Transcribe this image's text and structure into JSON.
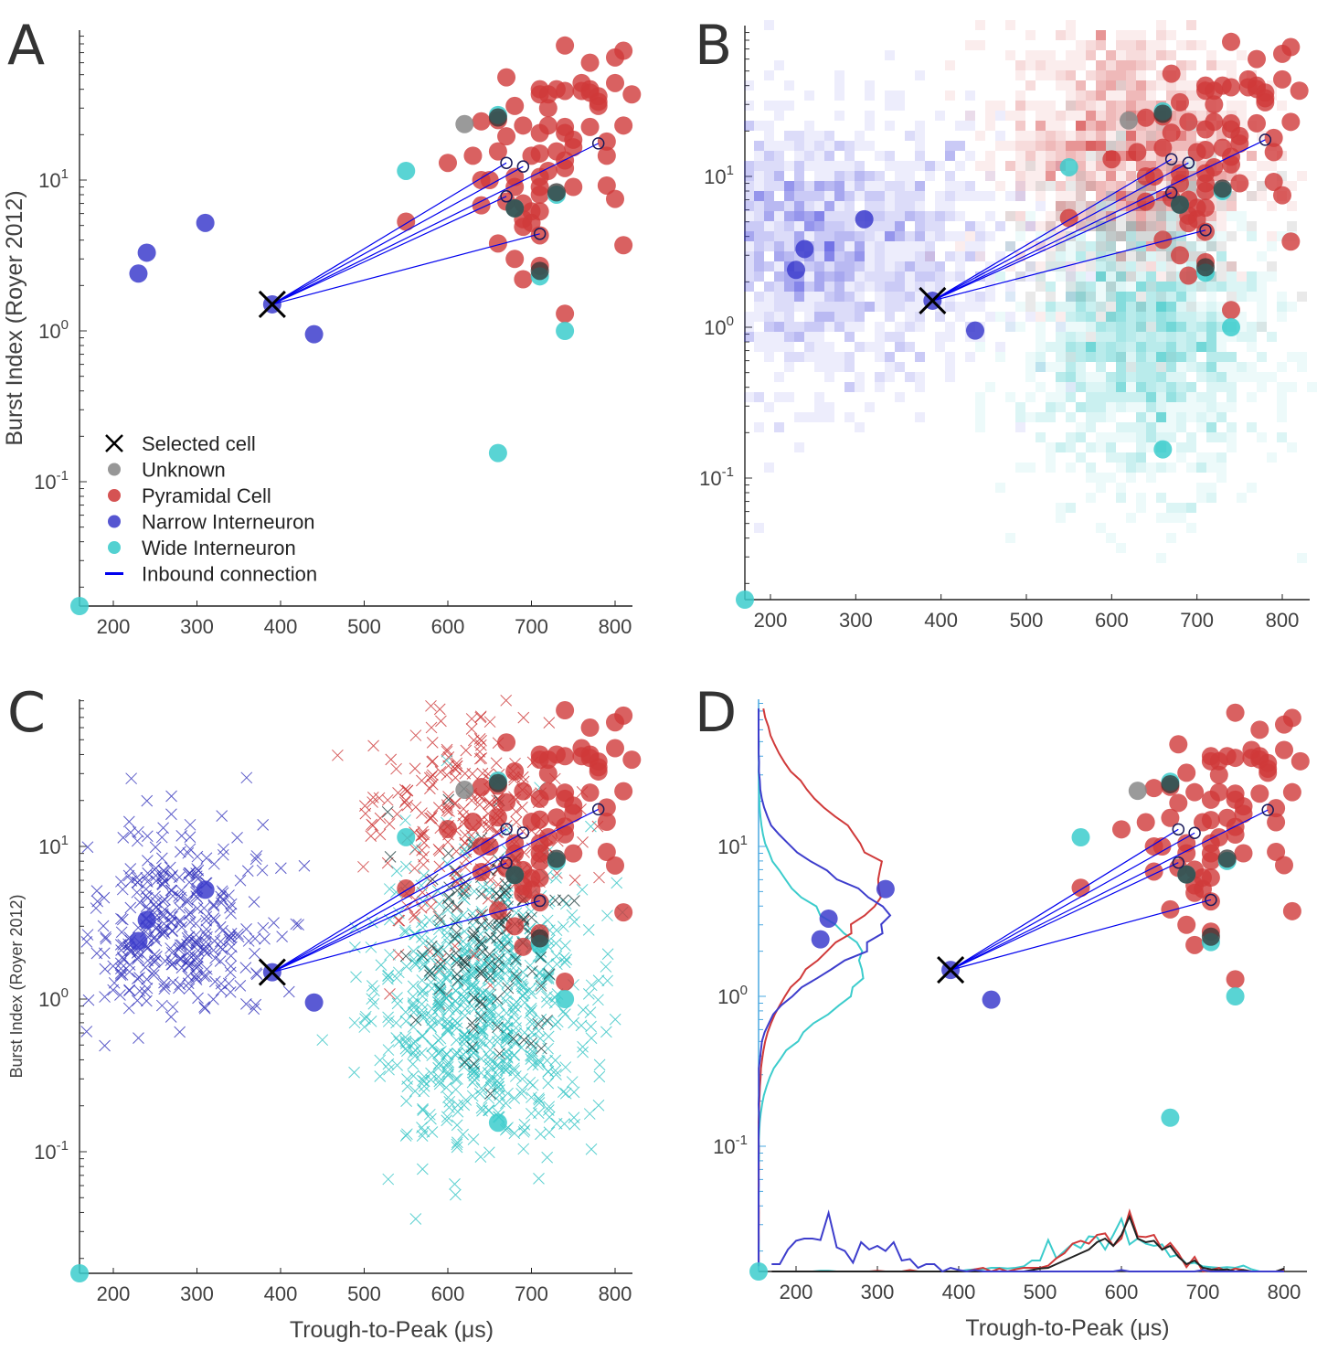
{
  "chart_data": {
    "type": "scatter",
    "figure_panels": [
      "A",
      "B",
      "C",
      "D"
    ],
    "xlabel": "Trough-to-Peak (μs)",
    "ylabel": "Burst Index (Royer 2012)",
    "xlim": [
      160,
      820
    ],
    "ylim_log10": [
      -1.84,
      2.0
    ],
    "yscale": "log",
    "x_ticks": [
      200,
      300,
      400,
      500,
      600,
      700,
      800
    ],
    "y_ticks": [
      {
        "base": "10",
        "exp": "1",
        "value": 10
      },
      {
        "base": "10",
        "exp": "0",
        "value": 1
      },
      {
        "base": "10",
        "exp": "-1",
        "value": 0.1
      }
    ],
    "legend": {
      "placement": "bottom-left (panel A)",
      "entries": [
        {
          "label": "Selected cell",
          "marker": "x",
          "color": "#000000"
        },
        {
          "label": "Unknown",
          "marker": "circle",
          "color": "#8c8c8c"
        },
        {
          "label": "Pyramidal Cell",
          "marker": "circle",
          "color": "#d04040"
        },
        {
          "label": "Narrow Interneuron",
          "marker": "circle",
          "color": "#4444cc"
        },
        {
          "label": "Wide Interneuron",
          "marker": "circle",
          "color": "#40cccc"
        },
        {
          "label": "Inbound connection",
          "marker": "line",
          "color": "#0000ee"
        }
      ]
    },
    "colors": {
      "pyramidal": "#d03a3a",
      "narrow": "#3d3dcc",
      "wide": "#3ccccc",
      "unknown": "#888888",
      "dark": "#333333",
      "connection": "#0000ee",
      "selected": "#000000",
      "d_yaxis": "#4aa8e0"
    },
    "selected_cell": {
      "x": 390,
      "y": 1.5
    },
    "connection_targets": [
      {
        "x": 670,
        "y": 13
      },
      {
        "x": 690,
        "y": 12.3
      },
      {
        "x": 670,
        "y": 7.8
      },
      {
        "x": 710,
        "y": 4.4
      },
      {
        "x": 780,
        "y": 17.5
      }
    ],
    "series": [
      {
        "name": "Unknown",
        "points": [
          [
            620,
            23.5
          ]
        ]
      },
      {
        "name": "Dark overlap",
        "points": [
          [
            660,
            26
          ],
          [
            680,
            6.5
          ],
          [
            730,
            8.3
          ],
          [
            710,
            2.5
          ]
        ]
      },
      {
        "name": "Narrow Interneuron",
        "points": [
          [
            230,
            2.4
          ],
          [
            240,
            3.3
          ],
          [
            310,
            5.2
          ],
          [
            440,
            0.95
          ],
          [
            390,
            1.5
          ]
        ]
      },
      {
        "name": "Wide Interneuron",
        "points": [
          [
            160,
            0.016
          ],
          [
            550,
            11.5
          ],
          [
            660,
            27
          ],
          [
            680,
            6.5
          ],
          [
            710,
            2.3
          ],
          [
            730,
            8.0
          ],
          [
            740,
            1.0
          ],
          [
            660,
            0.155
          ]
        ]
      },
      {
        "name": "Pyramidal Cell",
        "points": [
          [
            740,
            78
          ],
          [
            800,
            65
          ],
          [
            810,
            72
          ],
          [
            770,
            60
          ],
          [
            670,
            48
          ],
          [
            760,
            44
          ],
          [
            800,
            44
          ],
          [
            820,
            37
          ],
          [
            710,
            40
          ],
          [
            710,
            37
          ],
          [
            730,
            40
          ],
          [
            740,
            39
          ],
          [
            720,
            37
          ],
          [
            770,
            38
          ],
          [
            780,
            36
          ],
          [
            760,
            39
          ],
          [
            770,
            40
          ],
          [
            680,
            31
          ],
          [
            720,
            30
          ],
          [
            780,
            31
          ],
          [
            780,
            33
          ],
          [
            640,
            24.5
          ],
          [
            660,
            25
          ],
          [
            690,
            23
          ],
          [
            710,
            20.5
          ],
          [
            720,
            23
          ],
          [
            740,
            22.5
          ],
          [
            740,
            20.5
          ],
          [
            770,
            22.5
          ],
          [
            810,
            23
          ],
          [
            670,
            19.5
          ],
          [
            750,
            18.5
          ],
          [
            790,
            18
          ],
          [
            600,
            13
          ],
          [
            630,
            14.5
          ],
          [
            660,
            15.5
          ],
          [
            700,
            14.5
          ],
          [
            710,
            15
          ],
          [
            730,
            15.5
          ],
          [
            740,
            13.5
          ],
          [
            750,
            16.5
          ],
          [
            790,
            14.5
          ],
          [
            640,
            10
          ],
          [
            650,
            10
          ],
          [
            680,
            10.5
          ],
          [
            710,
            10.5
          ],
          [
            720,
            11.5
          ],
          [
            740,
            12
          ],
          [
            680,
            9
          ],
          [
            710,
            9
          ],
          [
            710,
            8
          ],
          [
            750,
            9
          ],
          [
            790,
            9.2
          ],
          [
            800,
            7.5
          ],
          [
            640,
            6.8
          ],
          [
            670,
            7.2
          ],
          [
            690,
            7.0
          ],
          [
            700,
            6.2
          ],
          [
            710,
            6.2
          ],
          [
            690,
            5.5
          ],
          [
            700,
            5.2
          ],
          [
            690,
            4.9
          ],
          [
            550,
            5.3
          ],
          [
            660,
            3.8
          ],
          [
            710,
            4.3
          ],
          [
            680,
            3.0
          ],
          [
            710,
            2.7
          ],
          [
            690,
            2.2
          ],
          [
            810,
            3.7
          ],
          [
            740,
            1.3
          ]
        ]
      }
    ],
    "panel_B": {
      "description": "scatter overlaid on 2D density heatmaps per cell type",
      "density_centers": [
        {
          "type": "narrow",
          "x": 250,
          "y": 3.5,
          "spread": "high"
        },
        {
          "type": "pyramidal",
          "x": 620,
          "y": 15,
          "spread": "high"
        },
        {
          "type": "wide",
          "x": 640,
          "y": 1.0,
          "spread": "high"
        }
      ]
    },
    "panel_C": {
      "description": "scatter overlaid on reference population shown as x markers colored by type",
      "reference_marker": "x"
    },
    "panel_D": {
      "description": "scatter with marginal histograms along y (left) and x (bottom) axes per type",
      "x_marginal": {
        "bins": [
          170,
          180,
          190,
          200,
          210,
          220,
          230,
          240,
          250,
          260,
          270,
          280,
          290,
          300,
          310,
          320,
          330,
          340,
          350,
          360,
          370,
          380,
          390,
          400,
          410,
          420,
          430,
          440,
          450,
          460,
          470,
          480,
          490,
          500,
          510,
          520,
          530,
          540,
          550,
          560,
          570,
          580,
          590,
          600,
          610,
          620,
          630,
          640,
          650,
          660,
          670,
          680,
          690,
          700,
          710,
          720,
          730,
          740,
          750,
          760,
          770,
          780,
          790,
          800
        ],
        "narrow": [
          0.1,
          0.1,
          0.3,
          0.42,
          0.45,
          0.45,
          0.43,
          0.8,
          0.33,
          0.28,
          0.12,
          0.4,
          0.3,
          0.35,
          0.28,
          0.4,
          0.15,
          0.17,
          0.05,
          0.1,
          0.1,
          0.0,
          0.05,
          0.02,
          0.0,
          0.02,
          0.0,
          0.0,
          0.0,
          0.0,
          0.0,
          0.0,
          0.0,
          0.0,
          0.0,
          0.0,
          0.0,
          0.0,
          0.0,
          0.0,
          0.0,
          0.0,
          0.0,
          0.02,
          0.0,
          0.0,
          0.0,
          0.0,
          0.0,
          0.0,
          0.0,
          0.0,
          0.0,
          0.02,
          0.0,
          0.0,
          0.0,
          0.0,
          0.0,
          0.0,
          0.0,
          0.0,
          0.0,
          0.0
        ],
        "pyramidal": [
          0,
          0,
          0,
          0,
          0,
          0,
          0,
          0,
          0,
          0,
          0,
          0,
          0,
          0.01,
          0,
          0,
          0,
          0.02,
          0,
          0,
          0,
          0,
          0,
          0,
          0,
          0.03,
          0.05,
          0.0,
          0.04,
          0.0,
          0.03,
          0.05,
          0.05,
          0.05,
          0.08,
          0.18,
          0.25,
          0.38,
          0.42,
          0.38,
          0.5,
          0.52,
          0.35,
          0.45,
          0.82,
          0.48,
          0.47,
          0.5,
          0.3,
          0.39,
          0.25,
          0.06,
          0.2,
          0.0,
          0.02,
          0.05,
          0.0,
          0.04,
          0.02,
          0.0,
          0.0,
          0.0,
          0.0,
          0.02
        ],
        "wide": [
          0,
          0,
          0,
          0,
          0,
          0,
          0.01,
          0.01,
          0,
          0,
          0,
          0,
          0,
          0,
          0,
          0,
          0,
          0,
          0,
          0,
          0,
          0,
          0,
          0,
          0.02,
          0.03,
          0.03,
          0.05,
          0.05,
          0.04,
          0.05,
          0.07,
          0.15,
          0.15,
          0.43,
          0.18,
          0.28,
          0.38,
          0.32,
          0.48,
          0.47,
          0.3,
          0.5,
          0.72,
          0.37,
          0.45,
          0.38,
          0.35,
          0.37,
          0.2,
          0.23,
          0.1,
          0.12,
          0.07,
          0.06,
          0.05,
          0.06,
          0.05,
          0.08,
          0.03,
          0.0,
          0.0,
          0.0,
          0.0
        ],
        "dark": [
          0,
          0,
          0,
          0,
          0,
          0,
          0,
          0,
          0,
          0,
          0,
          0,
          0,
          0,
          0,
          0,
          0,
          0,
          0,
          0,
          0,
          0,
          0,
          0,
          0,
          0,
          0,
          0,
          0,
          0,
          0,
          0.0,
          0.02,
          0.04,
          0.05,
          0.1,
          0.15,
          0.2,
          0.25,
          0.3,
          0.4,
          0.45,
          0.35,
          0.5,
          0.75,
          0.45,
          0.4,
          0.42,
          0.3,
          0.35,
          0.2,
          0.1,
          0.15,
          0.05,
          0.03,
          0.02,
          0.03,
          0.0,
          0.02,
          0.0,
          0.0,
          0.0,
          0.0,
          0.04
        ]
      },
      "y_marginal_peaks": {
        "narrow": {
          "log10_peak": 0.5,
          "relative": 1.0
        },
        "pyramidal": {
          "log10_peak": 0.78,
          "relative": 0.95
        },
        "wide": {
          "log10_peak": 0.2,
          "relative": 0.82
        }
      }
    }
  },
  "panels": [
    {
      "letter": "A",
      "xlabel": "",
      "ylabel": "Burst Index (Royer 2012)"
    },
    {
      "letter": "B",
      "xlabel": "",
      "ylabel": ""
    },
    {
      "letter": "C",
      "xlabel": "Trough-to-Peak (μs)",
      "ylabel": "Burst Index (Royer 2012)"
    },
    {
      "letter": "D",
      "xlabel": "Trough-to-Peak (μs)",
      "ylabel": ""
    }
  ]
}
